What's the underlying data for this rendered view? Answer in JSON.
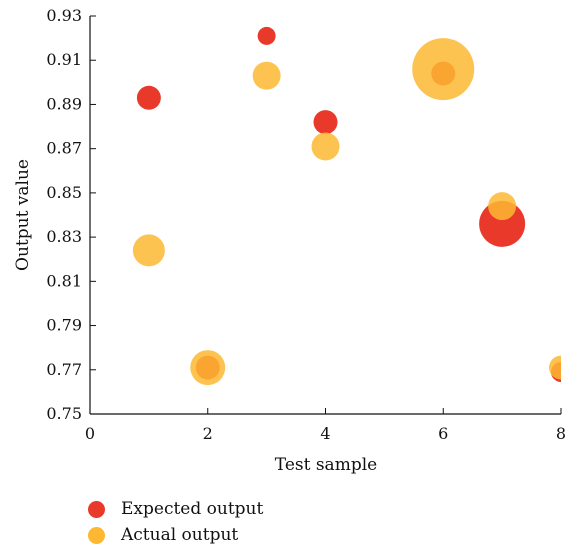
{
  "chart_data": {
    "type": "scatter",
    "xlabel": "Test sample",
    "ylabel": "Output value",
    "xlim": [
      0,
      8
    ],
    "ylim": [
      0.75,
      0.93
    ],
    "x_ticks": [
      "0",
      "2",
      "4",
      "6",
      "8"
    ],
    "y_ticks": [
      "0.75",
      "0.77",
      "0.79",
      "0.81",
      "0.83",
      "0.85",
      "0.87",
      "0.89",
      "0.91",
      "0.93"
    ],
    "legend_position": "bottom-left",
    "series": [
      {
        "name": "Expected output",
        "color": "#e8392a",
        "points": [
          {
            "x": 1,
            "y": 0.893,
            "size": 1.2
          },
          {
            "x": 2,
            "y": 0.771,
            "size": 1.2
          },
          {
            "x": 3,
            "y": 0.921,
            "size": 0.9
          },
          {
            "x": 4,
            "y": 0.882,
            "size": 1.2
          },
          {
            "x": 6,
            "y": 0.904,
            "size": 1.2
          },
          {
            "x": 7,
            "y": 0.836,
            "size": 2.3
          },
          {
            "x": 8,
            "y": 0.769,
            "size": 1.0
          }
        ]
      },
      {
        "name": "Actual output",
        "color": "#fdb833",
        "points": [
          {
            "x": 1,
            "y": 0.824,
            "size": 1.6
          },
          {
            "x": 2,
            "y": 0.771,
            "size": 1.75
          },
          {
            "x": 3,
            "y": 0.903,
            "size": 1.4
          },
          {
            "x": 4,
            "y": 0.871,
            "size": 1.4
          },
          {
            "x": 6,
            "y": 0.906,
            "size": 3.1
          },
          {
            "x": 7,
            "y": 0.844,
            "size": 1.4
          },
          {
            "x": 8,
            "y": 0.771,
            "size": 1.2
          }
        ]
      }
    ]
  }
}
